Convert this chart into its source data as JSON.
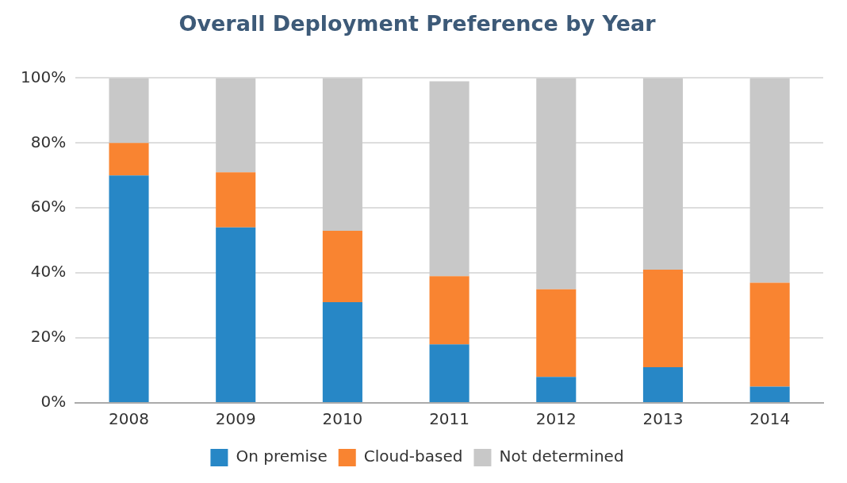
{
  "chart_data": {
    "type": "bar",
    "title": "Overall Deployment Preference by Year",
    "categories": [
      "2008",
      "2009",
      "2010",
      "2011",
      "2012",
      "2013",
      "2014"
    ],
    "series": [
      {
        "name": "On premise",
        "color": "#2787c6",
        "values": [
          70,
          54,
          31,
          18,
          8,
          11,
          5
        ]
      },
      {
        "name": "Cloud-based",
        "color": "#f98431",
        "values": [
          10,
          17,
          22,
          21,
          27,
          30,
          32
        ]
      },
      {
        "name": "Not determined",
        "color": "#c8c8c8",
        "values": [
          20,
          29,
          47,
          60,
          65,
          59,
          63
        ]
      }
    ],
    "stacked": true,
    "ylim": [
      0,
      100
    ],
    "yticks": [
      {
        "value": 0,
        "label": "0%"
      },
      {
        "value": 20,
        "label": "20%"
      },
      {
        "value": 40,
        "label": "40%"
      },
      {
        "value": 60,
        "label": "60%"
      },
      {
        "value": 80,
        "label": "80%"
      },
      {
        "value": 100,
        "label": "100%"
      }
    ],
    "grid": "y",
    "legend": "bottom"
  }
}
